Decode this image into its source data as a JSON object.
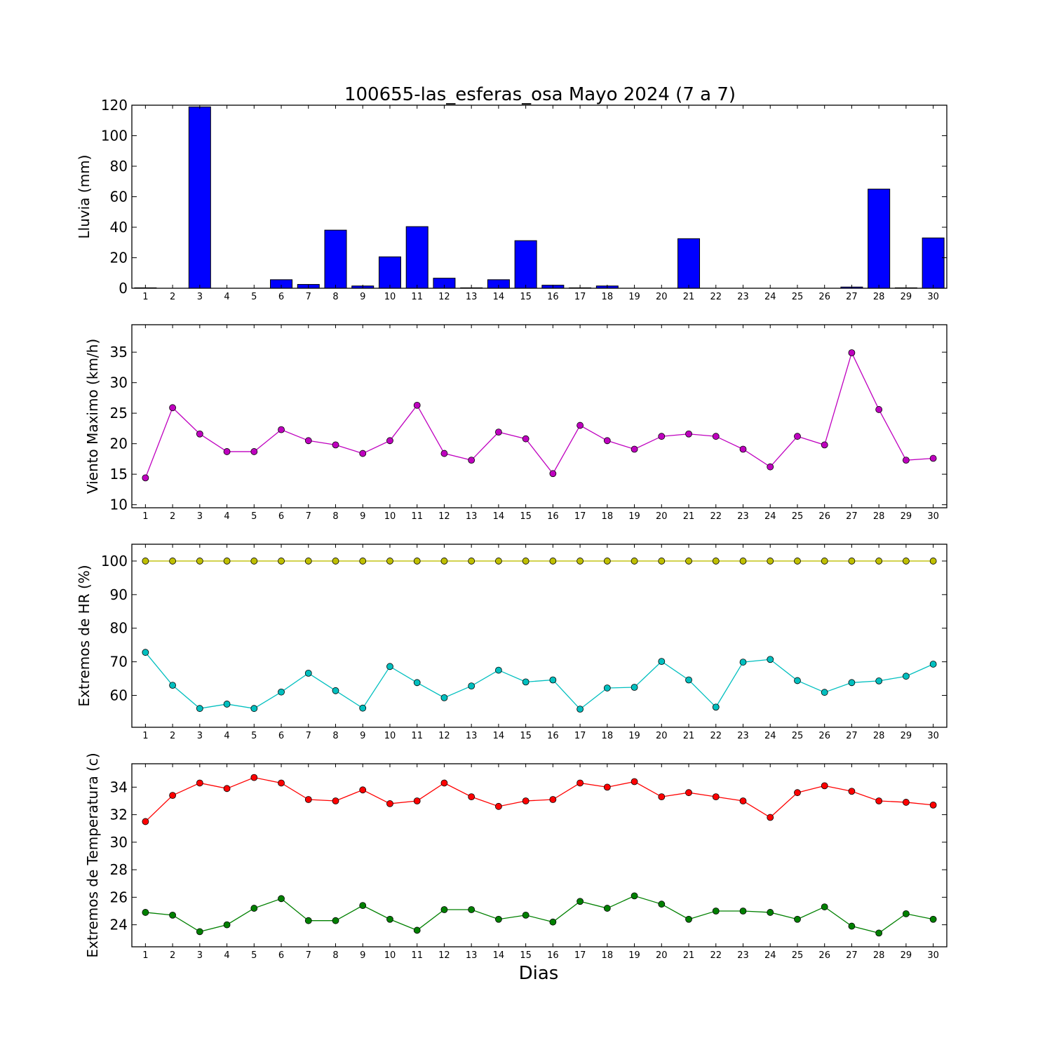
{
  "figure": {
    "title": "100655-las_esferas_osa Mayo 2024  (7 a 7)",
    "xlabel": "Dias"
  },
  "chart_data": [
    {
      "type": "bar",
      "ylabel": "Lluvia (mm)",
      "ylim": [
        0,
        120
      ],
      "yticks": [
        0,
        20,
        40,
        60,
        80,
        100,
        120
      ],
      "categories": [
        1,
        2,
        3,
        4,
        5,
        6,
        7,
        8,
        9,
        10,
        11,
        12,
        13,
        14,
        15,
        16,
        17,
        18,
        19,
        20,
        21,
        22,
        23,
        24,
        25,
        26,
        27,
        28,
        29,
        30
      ],
      "series": [
        {
          "color": "#0000ff",
          "values": [
            0.3,
            0,
            118.9,
            0,
            0,
            5.6,
            2.5,
            38.1,
            1.5,
            20.6,
            40.4,
            6.6,
            0.3,
            5.6,
            31.2,
            2.0,
            0.3,
            1.5,
            0,
            0,
            32.5,
            0,
            0,
            0,
            0,
            0,
            0.8,
            65.0,
            0.3,
            33.0
          ]
        }
      ],
      "grid": false
    },
    {
      "type": "line",
      "ylabel": "Viento Maximo (km/h)",
      "ylim": [
        9.5,
        39.5
      ],
      "yticks": [
        10,
        15,
        20,
        25,
        30,
        35
      ],
      "categories": [
        1,
        2,
        3,
        4,
        5,
        6,
        7,
        8,
        9,
        10,
        11,
        12,
        13,
        14,
        15,
        16,
        17,
        18,
        19,
        20,
        21,
        22,
        23,
        24,
        25,
        26,
        27,
        28,
        29,
        30
      ],
      "series": [
        {
          "color": "#bf00bf",
          "values": [
            14.4,
            25.9,
            21.6,
            18.7,
            18.7,
            22.3,
            20.5,
            19.8,
            18.4,
            20.5,
            26.3,
            18.4,
            17.3,
            21.9,
            20.8,
            15.1,
            23.0,
            20.5,
            19.1,
            21.2,
            21.6,
            21.2,
            19.1,
            16.2,
            21.2,
            19.8,
            34.9,
            25.6,
            17.3,
            17.6
          ]
        }
      ],
      "grid": false
    },
    {
      "type": "line",
      "ylabel": "Extremos de HR (%)",
      "ylim": [
        50.5,
        105
      ],
      "yticks": [
        60,
        70,
        80,
        90,
        100
      ],
      "categories": [
        1,
        2,
        3,
        4,
        5,
        6,
        7,
        8,
        9,
        10,
        11,
        12,
        13,
        14,
        15,
        16,
        17,
        18,
        19,
        20,
        21,
        22,
        23,
        24,
        25,
        26,
        27,
        28,
        29,
        30
      ],
      "series": [
        {
          "color": "#bfbf00",
          "values": [
            100,
            100,
            100,
            100,
            100,
            100,
            100,
            100,
            100,
            100,
            100,
            100,
            100,
            100,
            100,
            100,
            100,
            100,
            100,
            100,
            100,
            100,
            100,
            100,
            100,
            100,
            100,
            100,
            100,
            100
          ]
        },
        {
          "color": "#00bfbf",
          "values": [
            72.8,
            63.0,
            56.1,
            57.4,
            56.1,
            61.0,
            66.6,
            61.4,
            56.2,
            68.6,
            63.8,
            59.3,
            62.8,
            67.5,
            64.0,
            64.6,
            55.9,
            62.2,
            62.4,
            70.1,
            64.6,
            56.5,
            69.9,
            70.7,
            64.4,
            60.9,
            63.8,
            64.3,
            65.7,
            69.3
          ]
        }
      ],
      "grid": false
    },
    {
      "type": "line",
      "ylabel": "Extremos de Temperatura (c)",
      "ylim": [
        22.4,
        35.7
      ],
      "yticks": [
        24,
        26,
        28,
        30,
        32,
        34
      ],
      "categories": [
        1,
        2,
        3,
        4,
        5,
        6,
        7,
        8,
        9,
        10,
        11,
        12,
        13,
        14,
        15,
        16,
        17,
        18,
        19,
        20,
        21,
        22,
        23,
        24,
        25,
        26,
        27,
        28,
        29,
        30
      ],
      "series": [
        {
          "color": "#ff0000",
          "values": [
            31.5,
            33.4,
            34.3,
            33.9,
            34.7,
            34.3,
            33.1,
            33.0,
            33.8,
            32.8,
            33.0,
            34.3,
            33.3,
            32.6,
            33.0,
            33.1,
            34.3,
            34.0,
            34.4,
            33.3,
            33.6,
            33.3,
            33.0,
            31.8,
            33.6,
            34.1,
            33.7,
            33.0,
            32.9,
            32.7
          ]
        },
        {
          "color": "#008000",
          "values": [
            24.9,
            24.7,
            23.5,
            24.0,
            25.2,
            25.9,
            24.3,
            24.3,
            25.4,
            24.4,
            23.6,
            25.1,
            25.1,
            24.4,
            24.7,
            24.2,
            25.7,
            25.2,
            26.1,
            25.5,
            24.4,
            25.0,
            25.0,
            24.9,
            24.4,
            25.3,
            23.9,
            23.4,
            24.8,
            24.4
          ]
        }
      ],
      "grid": false
    }
  ]
}
